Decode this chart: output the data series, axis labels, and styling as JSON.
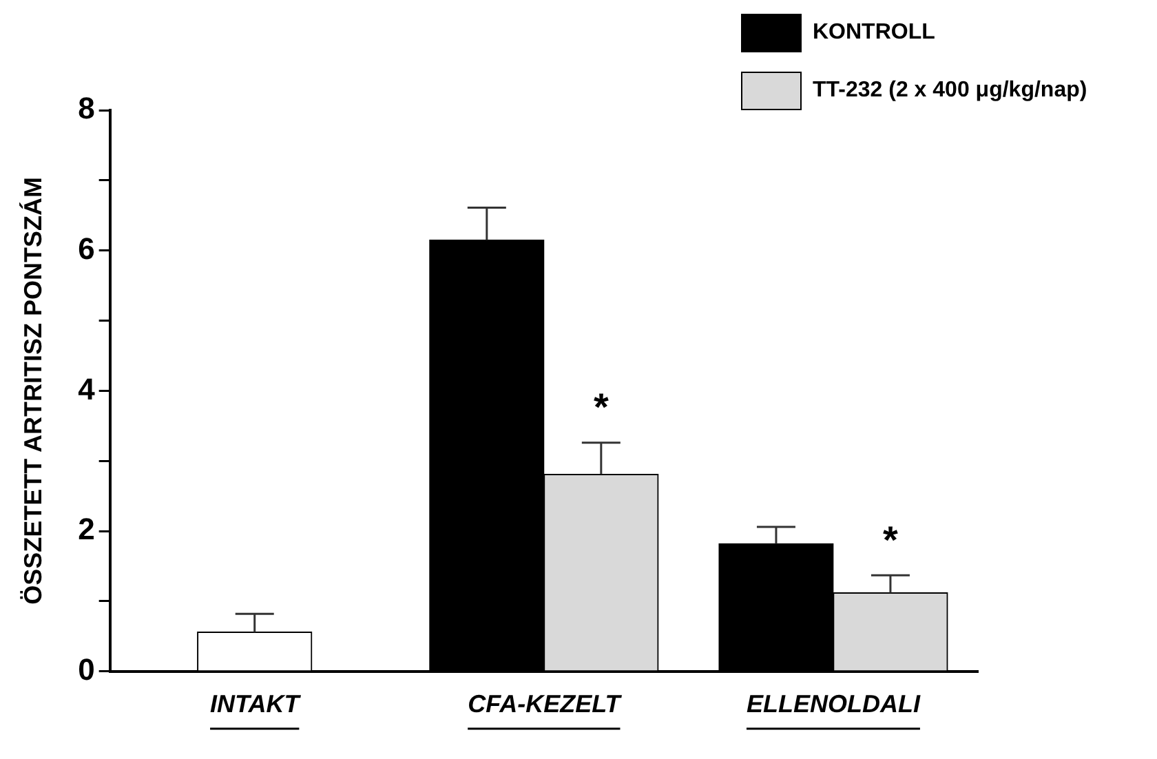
{
  "chart_data": {
    "type": "bar",
    "ylabel": "ÖSSZETETT ARTRITISZ PONTSZÁM",
    "categories": [
      "INTAKT",
      "CFA-KEZELT",
      "ELLENOLDALI"
    ],
    "series": [
      {
        "color": "#ffffff",
        "values": [
          0.56,
          null,
          null
        ],
        "errors": [
          [
            0.56,
            0.82
          ],
          null,
          null
        ]
      },
      {
        "name": "KONTROLL",
        "color": "#000000",
        "values": [
          null,
          6.15,
          1.82
        ],
        "errors": [
          null,
          [
            6.15,
            6.61
          ],
          [
            1.82,
            2.06
          ]
        ]
      },
      {
        "name": "TT-232 (2 x 400 μg/kg/nap)",
        "color": "#d9d9d9",
        "values": [
          null,
          2.81,
          1.12
        ],
        "errors": [
          null,
          [
            2.81,
            3.26
          ],
          [
            1.12,
            1.37
          ]
        ]
      }
    ],
    "ylim": [
      0,
      8
    ],
    "yticks": [
      0,
      {
        "value": 1,
        "label": null
      },
      2,
      {
        "value": 3,
        "label": null
      },
      4,
      {
        "value": 5,
        "label": null
      },
      6,
      {
        "value": 7,
        "label": null
      },
      8
    ],
    "annotations": [
      {
        "text": "*",
        "x": "CFA-KEZELT",
        "y": 3.26
      },
      {
        "text": "*",
        "x": "ELLENOLDALI",
        "y": 1.37
      }
    ],
    "legend": "top right",
    "grid": false
  }
}
